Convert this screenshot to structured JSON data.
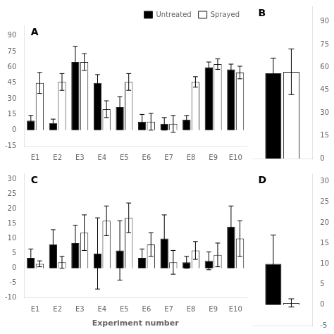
{
  "chart_data": [
    {
      "type": "bar",
      "annotations": [
        "A"
      ],
      "categories": [
        "E1",
        "E2",
        "E3",
        "E4",
        "E5",
        "E6",
        "E7",
        "E8",
        "E9",
        "E10"
      ],
      "series": [
        {
          "name": "Untreated",
          "color": "black",
          "values": [
            9,
            6.5,
            65,
            45,
            22,
            8,
            6,
            10,
            60,
            58
          ],
          "errors": [
            5,
            4,
            15,
            8,
            10,
            7,
            6,
            4,
            5,
            5
          ]
        },
        {
          "name": "Sprayed",
          "color": "white",
          "values": [
            45,
            46,
            65,
            20,
            46,
            8,
            6,
            46,
            63,
            55
          ],
          "errors": [
            10,
            8,
            8,
            8,
            8,
            8,
            8,
            5,
            5,
            6
          ]
        }
      ],
      "ylim": [
        -15,
        100
      ],
      "yticks": [
        -15,
        0,
        15,
        30,
        45,
        60,
        75,
        90
      ],
      "grid": false,
      "legend": "upper right"
    },
    {
      "type": "bar",
      "annotations": [
        "B"
      ],
      "categories": [
        null
      ],
      "series": [
        {
          "color": "black",
          "values": [
            56
          ],
          "errors": [
            10
          ]
        },
        {
          "color": "white",
          "values": [
            57
          ],
          "errors": [
            15
          ]
        }
      ],
      "ylim": [
        0,
        100
      ],
      "yticks": [
        0,
        15,
        30,
        45,
        60,
        75,
        90
      ],
      "grid": false,
      "tick_labels": "y"
    },
    {
      "type": "bar",
      "annotations": [
        "C"
      ],
      "xlabel": "Experiment number",
      "categories": [
        "E1",
        "E2",
        "E3",
        "E4",
        "E5",
        "E6",
        "E7",
        "E8",
        "E9",
        "E10"
      ],
      "series": [
        {
          "name": "Untreated",
          "color": "black",
          "values": [
            3.5,
            8,
            8.5,
            5,
            6,
            3.5,
            10,
            2,
            2.5,
            14
          ],
          "errors": [
            3,
            5,
            6,
            12,
            10,
            3,
            8,
            2,
            3,
            7
          ]
        },
        {
          "name": "Sprayed",
          "color": "white",
          "values": [
            1.5,
            2,
            12,
            16,
            17,
            8,
            2,
            6,
            4.5,
            10
          ],
          "errors": [
            1,
            2,
            6,
            5,
            5,
            4,
            4,
            3,
            4,
            6
          ]
        }
      ],
      "ylim": [
        -10,
        32
      ],
      "yticks": [
        -10,
        -5,
        0,
        5,
        10,
        15,
        20,
        25,
        30
      ],
      "grid": false
    },
    {
      "type": "bar",
      "annotations": [
        "D"
      ],
      "categories": [
        null
      ],
      "series": [
        {
          "color": "black",
          "values": [
            10
          ],
          "errors": [
            7
          ]
        },
        {
          "color": "white",
          "values": [
            0.5
          ],
          "errors": [
            1
          ]
        }
      ],
      "ylim": [
        -5,
        32
      ],
      "yticks": [
        -5,
        0,
        5,
        10,
        15,
        20,
        25,
        30
      ],
      "grid": false,
      "tick_labels": "y"
    }
  ]
}
